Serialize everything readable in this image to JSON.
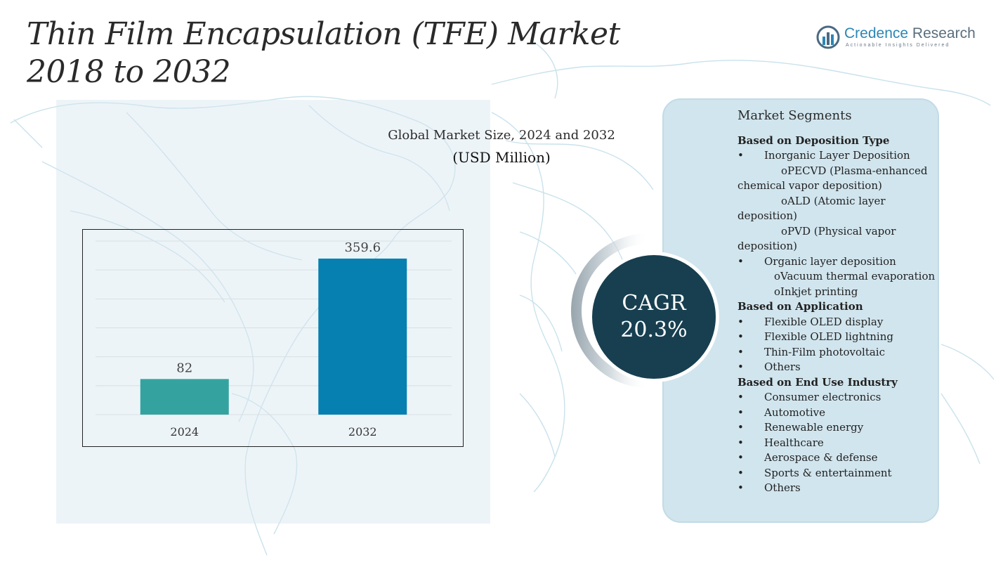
{
  "title": {
    "line1": "Thin Film Encapsulation (TFE) Market",
    "line2": "2018 to 2032"
  },
  "logo": {
    "name_part1": "Credence",
    "name_part2": " Research",
    "tagline": "Actionable Insights Delivered",
    "icon": "bar-chart-circle-icon"
  },
  "chart_data": {
    "type": "bar",
    "title": "Global Market Size, 2024 and 2032",
    "subtitle": "(USD Million)",
    "categories": [
      "2024",
      "2032"
    ],
    "values": [
      82,
      359.6
    ],
    "value_labels": [
      "82",
      "359.6"
    ],
    "colors": [
      "#34a3a0",
      "#0680b1"
    ],
    "ylim": [
      0,
      400
    ],
    "grid": true
  },
  "cagr": {
    "label": "CAGR",
    "value": "20.3%"
  },
  "segments": {
    "heading": "Market Segments",
    "groups": [
      {
        "title": "Based on Deposition Type",
        "items": [
          "Inorganic Layer Deposition",
          "oPECVD (Plasma-enhanced chemical vapor deposition)",
          "oALD (Atomic layer deposition)",
          "oPVD (Physical vapor deposition)",
          "Organic layer deposition",
          "oVacuum thermal evaporation",
          "oInkjet printing"
        ]
      },
      {
        "title": "Based on Application",
        "items": [
          "Flexible OLED display",
          "Flexible OLED lightning",
          "Thin-Film photovoltaic",
          "Others"
        ]
      },
      {
        "title": "Based on End Use Industry",
        "items": [
          "Consumer electronics",
          "Automotive",
          "Renewable energy",
          "Healthcare",
          "Aerospace & defense",
          "Sports & entertainment",
          "Others"
        ]
      }
    ]
  }
}
